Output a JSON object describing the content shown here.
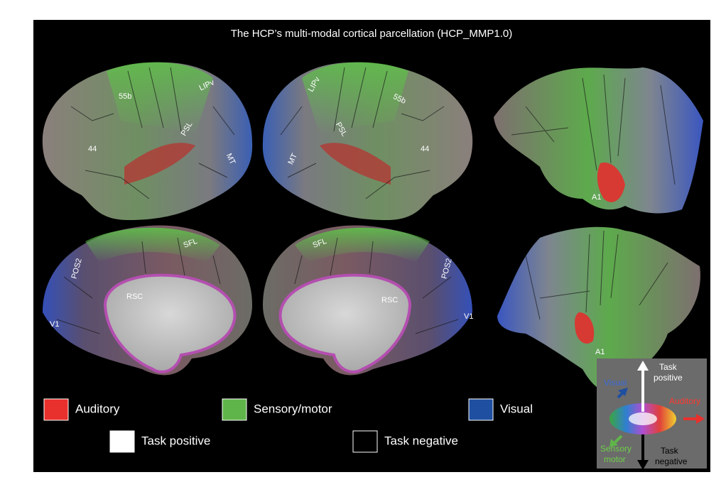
{
  "title": "The HCP’s multi-modal cortical parcellation (HCP_MMP1.0)",
  "brains": {
    "lateral_left": [
      "55b",
      "LIPv",
      "PSL",
      "44",
      "MT"
    ],
    "lateral_right": [
      "LIPv",
      "55b",
      "PSL",
      "44",
      "MT"
    ],
    "flat_top": [
      "A1"
    ],
    "medial_left": [
      "SFL",
      "POS2",
      "RSC",
      "V1"
    ],
    "medial_right": [
      "SFL",
      "POS2",
      "RSC",
      "V1"
    ],
    "flat_bottom": [
      "A1"
    ]
  },
  "legend": [
    {
      "label": "Auditory",
      "color": "#e8302c"
    },
    {
      "label": "Sensory/motor",
      "color": "#5fb54a"
    },
    {
      "label": "Visual",
      "color": "#1f4fa0"
    },
    {
      "label": "Task positive",
      "color": "#ffffff"
    },
    {
      "label": "Task negative",
      "color": "#000000"
    }
  ],
  "key": {
    "task_positive": [
      "Task",
      "positive"
    ],
    "visual": "Visual",
    "auditory": "Auditory",
    "sensory_motor": [
      "Sensory",
      "motor"
    ],
    "task_negative": [
      "Task",
      "negative"
    ]
  }
}
